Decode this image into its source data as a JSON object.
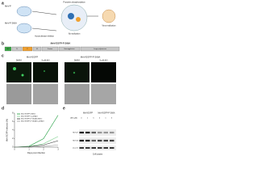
{
  "panel_labels": [
    "a",
    "b",
    "c",
    "d",
    "e"
  ],
  "panel_a": {
    "top_virus": "MeV-P",
    "bottom_virus": "MeV-P S66A",
    "inhibitor": "Aurora kinase inhibitor",
    "process": "P-protein phosphorylation",
    "outcome_top": "Virus replication",
    "outcome_bottom": "No replication"
  },
  "panel_b": {
    "title": "MeV-EGFP-P S66A",
    "genes": [
      "GFP",
      "N",
      "P",
      "M",
      "Fusion",
      "Hemagglutinin",
      "Large polymerase"
    ]
  },
  "panel_c": {
    "groups": [
      {
        "title": "MeV-EGFP",
        "columns": [
          "DMSO",
          "5 µM AKI"
        ]
      },
      {
        "title": "MeV-EGFP-P S66A",
        "columns": [
          "DMSO",
          "5 µM AKI"
        ]
      }
    ]
  },
  "panel_d": {
    "type": "line",
    "ylabel": "MeV-EGFP infection (%)",
    "xlabel": "Days post infection",
    "x": [
      0,
      1,
      2,
      3
    ],
    "xlim": [
      0,
      3
    ],
    "xticks": [
      0,
      1,
      2,
      3
    ],
    "ylim": [
      0,
      8
    ],
    "yticks": [
      0,
      2,
      4,
      6,
      8
    ],
    "series": [
      {
        "name": "MeV-EGFP DMSO",
        "color": "#1a9c3a",
        "values": [
          0,
          0.2,
          2,
          7.5
        ]
      },
      {
        "name": "MeV-EGFP 5 µM AKI",
        "color": "#7fd08f",
        "values": [
          0,
          0.1,
          0.8,
          2.5
        ]
      },
      {
        "name": "MeV-EGFP-P S66A DMSO",
        "color": "#333333",
        "values": [
          0,
          0.1,
          0.5,
          1.5
        ]
      },
      {
        "name": "MeV-EGFP-P S66A 5 µM AKI",
        "color": "#999999",
        "values": [
          0,
          0,
          0.2,
          0.5
        ]
      }
    ]
  },
  "panel_e": {
    "groups": [
      "MeV-EGFP",
      "MeV-EGFP-P S66A"
    ],
    "row_label": "AKI (µM)",
    "doses": [
      "0",
      "1",
      "5",
      "0",
      "1",
      "5"
    ],
    "bands": [
      "MeV-P",
      "MeV-N",
      "β-actin"
    ],
    "footer": "Cell lysates"
  }
}
